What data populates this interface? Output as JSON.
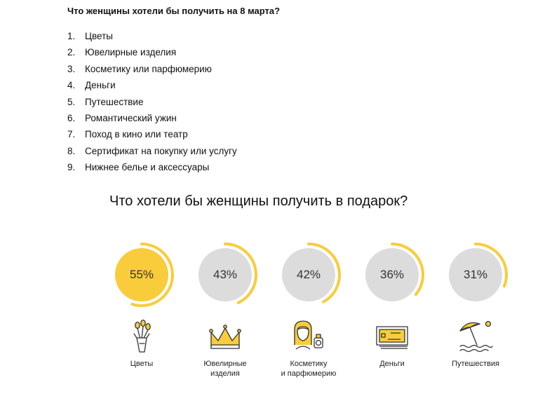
{
  "heading": "Что женщины хотели бы получить на 8 марта?",
  "list": [
    {
      "num": "1.",
      "text": "Цветы"
    },
    {
      "num": "2.",
      "text": "Ювелирные изделия"
    },
    {
      "num": "3.",
      "text": "Косметику или парфюмерию"
    },
    {
      "num": "4.",
      "text": "Деньги"
    },
    {
      "num": "5.",
      "text": "Путешествие"
    },
    {
      "num": "6.",
      "text": "Романтический ужин"
    },
    {
      "num": "7.",
      "text": "Поход в кино или театр"
    },
    {
      "num": "8.",
      "text": "Сертификат на покупку или услугу"
    },
    {
      "num": "9.",
      "text": "Нижнее белье и аксессуары"
    }
  ],
  "infographic": {
    "title": "Что хотели бы женщины получить в подарок?",
    "colors": {
      "accent": "#f9cc3b",
      "circle_grey": "#dcdcdc",
      "icon_stroke": "#333333"
    },
    "items": [
      {
        "percent": 55,
        "label": "55%",
        "caption_line1": "Цветы",
        "caption_line2": "",
        "icon": "flowers-bouquet-icon"
      },
      {
        "percent": 43,
        "label": "43%",
        "caption_line1": "Ювелирные",
        "caption_line2": "изделия",
        "icon": "crown-icon"
      },
      {
        "percent": 42,
        "label": "42%",
        "caption_line1": "Косметику",
        "caption_line2": "и парфюмерию",
        "icon": "woman-perfume-icon"
      },
      {
        "percent": 36,
        "label": "36%",
        "caption_line1": "Деньги",
        "caption_line2": "",
        "icon": "banknotes-icon"
      },
      {
        "percent": 31,
        "label": "31%",
        "caption_line1": "Путешествия",
        "caption_line2": "",
        "icon": "beach-umbrella-icon"
      }
    ]
  }
}
